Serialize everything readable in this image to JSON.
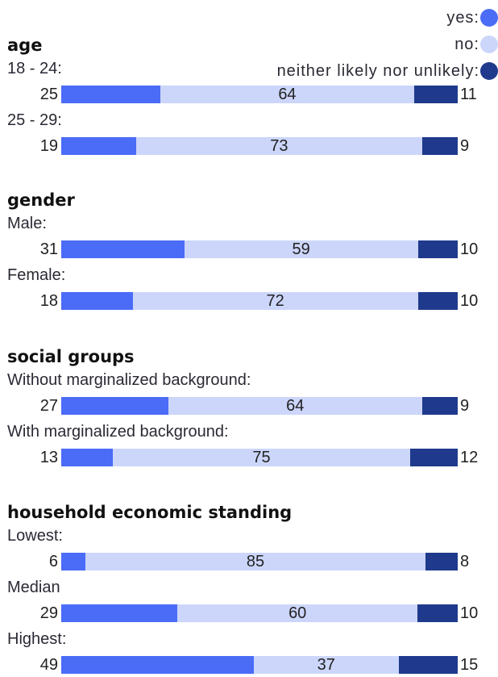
{
  "legend": [
    {
      "label": "yes:",
      "color": "#4a6cf7"
    },
    {
      "label": "no:",
      "color": "#ccd6fb"
    },
    {
      "label": "neither likely nor unlikely:",
      "color": "#1f3a8c"
    }
  ],
  "chart_data": {
    "type": "bar",
    "stacked": true,
    "orientation": "horizontal",
    "series_names": [
      "yes",
      "no",
      "neither likely nor unlikely"
    ],
    "colors": [
      "#4a6cf7",
      "#ccd6fb",
      "#1f3a8c"
    ],
    "groups": [
      {
        "title": "age",
        "rows": [
          {
            "label": "18 - 24:",
            "values": [
              25,
              64,
              11
            ]
          },
          {
            "label": "25 - 29:",
            "values": [
              19,
              73,
              9
            ]
          }
        ]
      },
      {
        "title": "gender",
        "rows": [
          {
            "label": "Male:",
            "values": [
              31,
              59,
              10
            ]
          },
          {
            "label": "Female:",
            "values": [
              18,
              72,
              10
            ]
          }
        ]
      },
      {
        "title": "social groups",
        "rows": [
          {
            "label": "Without marginalized background:",
            "values": [
              27,
              64,
              9
            ]
          },
          {
            "label": "With marginalized background:",
            "values": [
              13,
              75,
              12
            ]
          }
        ]
      },
      {
        "title": "household economic standing",
        "rows": [
          {
            "label": "Lowest:",
            "values": [
              6,
              85,
              8
            ]
          },
          {
            "label": "Median",
            "values": [
              29,
              60,
              10
            ]
          },
          {
            "label": "Highest:",
            "values": [
              49,
              37,
              15
            ]
          }
        ]
      }
    ]
  }
}
